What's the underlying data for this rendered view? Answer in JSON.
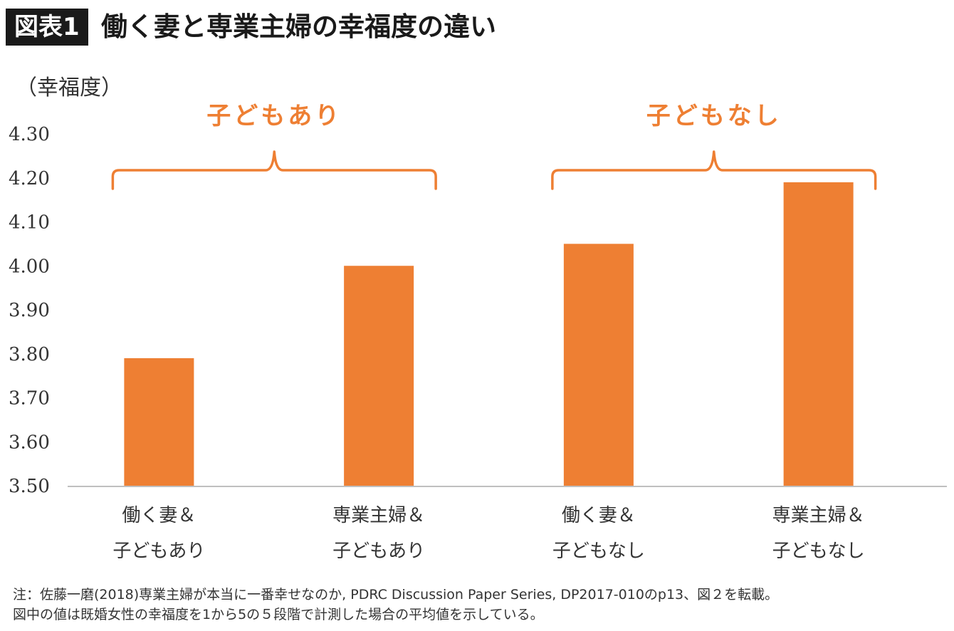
{
  "header": {
    "badge": "図表1",
    "title": "働く妻と専業主婦の幸福度の違い"
  },
  "notes": {
    "line1": "注：佐藤一磨(2018)専業主婦が本当に一番幸せなのか, PDRC Discussion Paper Series, DP2017-010のp13、図２を転載。",
    "line2": "図中の値は既婚女性の幸福度を1から5の５段階で計測した場合の平均値を示している。"
  },
  "chart_data": {
    "type": "bar",
    "ylabel": "（幸福度）",
    "ylim": [
      3.5,
      4.3
    ],
    "yticks": [
      "4.30",
      "4.20",
      "4.10",
      "4.00",
      "3.90",
      "3.80",
      "3.70",
      "3.60",
      "3.50"
    ],
    "categories": [
      [
        "働く妻＆",
        "子どもあり"
      ],
      [
        "専業主婦＆",
        "子どもあり"
      ],
      [
        "働く妻＆",
        "子どもなし"
      ],
      [
        "専業主婦＆",
        "子どもなし"
      ]
    ],
    "values": [
      3.79,
      4.0,
      4.05,
      4.19
    ],
    "groups": [
      {
        "label": "子どもあり",
        "categories": [
          0,
          1
        ]
      },
      {
        "label": "子どもなし",
        "categories": [
          2,
          3
        ]
      }
    ],
    "grid": false,
    "colors": {
      "bar": "#EE7F33",
      "axis": "#bfbfbf"
    }
  }
}
